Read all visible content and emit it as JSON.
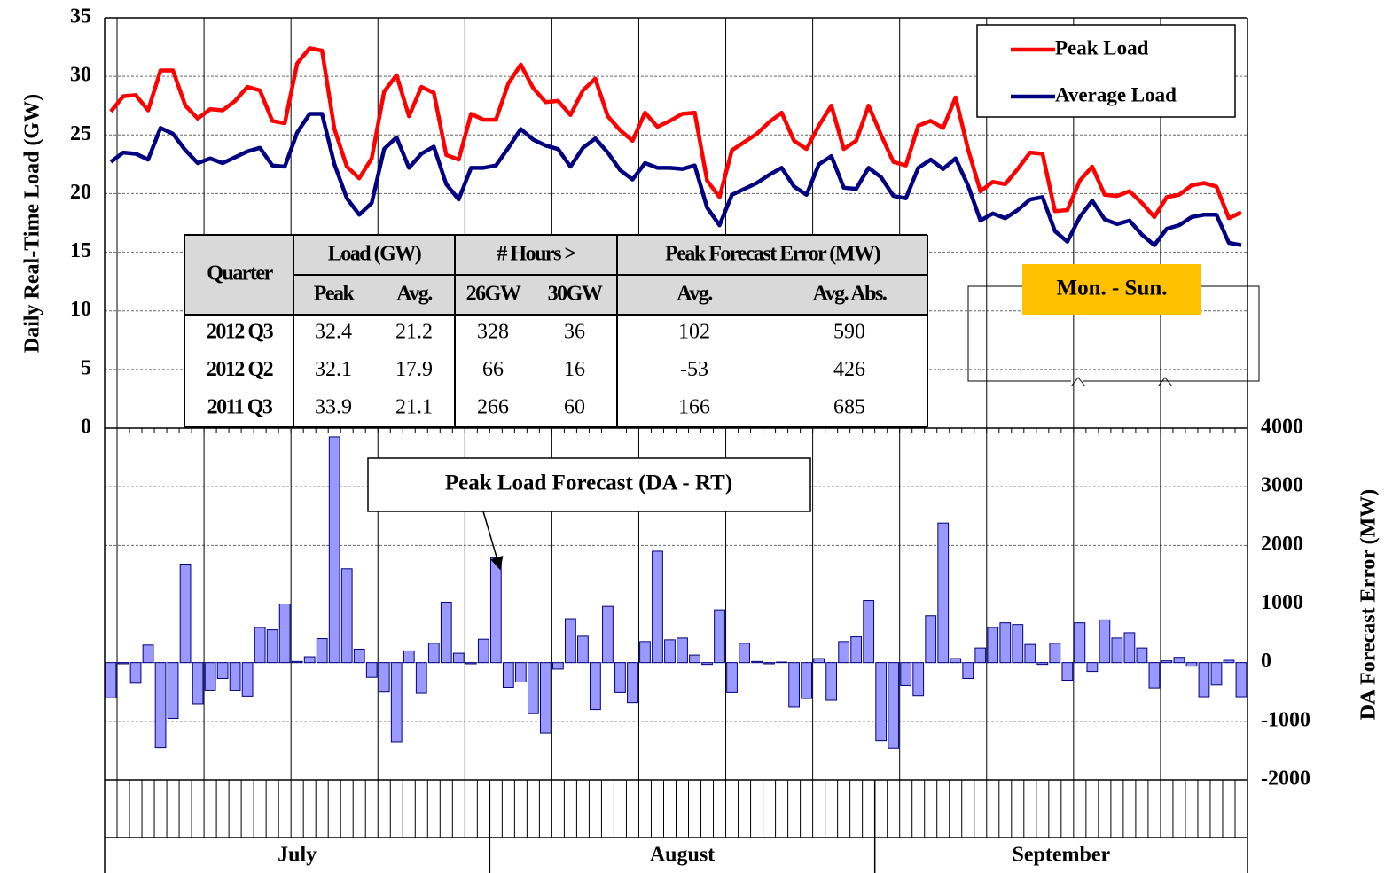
{
  "chart_data": {
    "type": "line",
    "categories": [
      null,
      null,
      null,
      null,
      null,
      null,
      null,
      null,
      null,
      null,
      null,
      null,
      null,
      null,
      null,
      null,
      null,
      null,
      null,
      null,
      null,
      null,
      null,
      null,
      null,
      null,
      null,
      null,
      null,
      null,
      null,
      null,
      null,
      null,
      null,
      null,
      null,
      null,
      null,
      null,
      null,
      null,
      null,
      null,
      null,
      null,
      null,
      null,
      null,
      null,
      null,
      null,
      null,
      null,
      null,
      null,
      null,
      null,
      null,
      null,
      null,
      null,
      null,
      null,
      null,
      null,
      null,
      null,
      null,
      null,
      null,
      null,
      null,
      null,
      null,
      null,
      null,
      null,
      null,
      null,
      null,
      null,
      null,
      null,
      null,
      null,
      null,
      null,
      null,
      null,
      null,
      null
    ],
    "months": [
      {
        "label": "July",
        "span": 31
      },
      {
        "label": "August",
        "span": 31
      },
      {
        "label": "September",
        "span": 30
      }
    ],
    "ylabel": "Daily Real-Time Load (GW)",
    "y2label": "DA Forecast Error (MW)",
    "ylim": [
      0,
      35
    ],
    "yticks": [
      0,
      5,
      10,
      15,
      20,
      25,
      30,
      35
    ],
    "y2lim": [
      -2000,
      4000
    ],
    "y2ticks": [
      -2000,
      -1000,
      0,
      1000,
      2000,
      3000,
      4000
    ],
    "grid": true,
    "legend": "upper right",
    "series": [
      {
        "name": "Peak Load",
        "color": "#ff0000",
        "values": [
          27.0,
          28.3,
          28.4,
          27.1,
          30.5,
          30.5,
          27.5,
          26.4,
          27.2,
          27.1,
          27.9,
          29.1,
          28.8,
          26.2,
          26.0,
          31.1,
          32.4,
          32.2,
          25.5,
          22.3,
          21.3,
          23.0,
          28.7,
          30.1,
          26.6,
          29.1,
          28.6,
          23.3,
          22.9,
          26.8,
          26.3,
          26.3,
          29.4,
          31.0,
          29.0,
          27.8,
          27.9,
          26.7,
          28.8,
          29.8,
          26.6,
          25.4,
          24.5,
          26.9,
          25.7,
          26.2,
          26.8,
          26.9,
          21.1,
          19.7,
          23.7,
          24.4,
          25.1,
          26.1,
          26.9,
          24.5,
          23.8,
          25.8,
          27.5,
          23.8,
          24.5,
          27.5,
          25.0,
          22.7,
          22.4,
          25.8,
          26.2,
          25.6,
          28.2,
          23.8,
          20.2,
          21.0,
          20.8,
          22.1,
          23.5,
          23.4,
          18.5,
          18.6,
          21.1,
          22.3,
          19.9,
          19.8,
          20.2,
          19.2,
          18.0,
          19.7,
          19.9,
          20.7,
          20.9,
          20.6,
          17.9,
          18.4
        ]
      },
      {
        "name": "Average Load",
        "color": "#000080",
        "values": [
          22.7,
          23.5,
          23.4,
          22.9,
          25.6,
          25.1,
          23.7,
          22.6,
          23.0,
          22.6,
          23.1,
          23.6,
          23.9,
          22.4,
          22.3,
          25.2,
          26.8,
          26.8,
          22.5,
          19.6,
          18.2,
          19.2,
          23.8,
          24.8,
          22.2,
          23.4,
          24.0,
          20.8,
          19.5,
          22.2,
          22.2,
          22.4,
          23.9,
          25.5,
          24.6,
          24.1,
          23.8,
          22.3,
          23.9,
          24.7,
          23.5,
          22.0,
          21.2,
          22.6,
          22.2,
          22.2,
          22.1,
          22.4,
          18.8,
          17.3,
          19.9,
          20.4,
          20.9,
          21.6,
          22.2,
          20.6,
          19.9,
          22.5,
          23.2,
          20.5,
          20.4,
          22.2,
          21.4,
          19.8,
          19.6,
          22.2,
          22.9,
          22.1,
          23.0,
          20.7,
          17.7,
          18.3,
          17.9,
          18.6,
          19.5,
          19.7,
          16.8,
          15.9,
          18.0,
          19.4,
          17.8,
          17.4,
          17.7,
          16.5,
          15.6,
          17.0,
          17.3,
          18.0,
          18.2,
          18.2,
          15.8,
          15.6
        ]
      },
      {
        "type": "bar",
        "axis": "y2",
        "color": "#9999ff",
        "values": [
          -600,
          -20,
          -350,
          300,
          -1450,
          -950,
          1680,
          -700,
          -480,
          -270,
          -480,
          -570,
          600,
          560,
          1000,
          20,
          100,
          410,
          3850,
          1600,
          230,
          -250,
          -500,
          -1350,
          200,
          -520,
          330,
          1030,
          160,
          -20,
          400,
          1790,
          -420,
          -330,
          -870,
          -1200,
          -110,
          750,
          450,
          -800,
          960,
          -510,
          -680,
          360,
          1900,
          390,
          420,
          130,
          -30,
          900,
          -510,
          330,
          20,
          -20,
          10,
          -760,
          -610,
          70,
          -640,
          360,
          440,
          1060,
          -1330,
          -1460,
          -390,
          -560,
          800,
          2380,
          70,
          -270,
          250,
          600,
          680,
          650,
          310,
          -30,
          330,
          -300,
          680,
          -150,
          730,
          420,
          510,
          250,
          -430,
          30,
          90,
          -60,
          -580,
          -380,
          40,
          -580
        ]
      }
    ],
    "annotations": [
      "Peak Load Forecast (DA - RT)",
      "Mon. - Sun."
    ]
  },
  "table": {
    "header": [
      [
        "Quarter",
        "Load (GW)",
        "# Hours >",
        "Peak Forecast Error (MW)"
      ],
      [
        "Peak",
        "Avg.",
        "26GW",
        "30GW",
        "Avg.",
        "Avg. Abs."
      ]
    ],
    "rows": [
      [
        "2012 Q3",
        32.4,
        21.2,
        328,
        36,
        102,
        590
      ],
      [
        "2012 Q2",
        32.1,
        17.9,
        66,
        16,
        -53,
        426
      ],
      [
        "2011 Q3",
        33.9,
        21.1,
        266,
        60,
        166,
        685
      ]
    ]
  }
}
